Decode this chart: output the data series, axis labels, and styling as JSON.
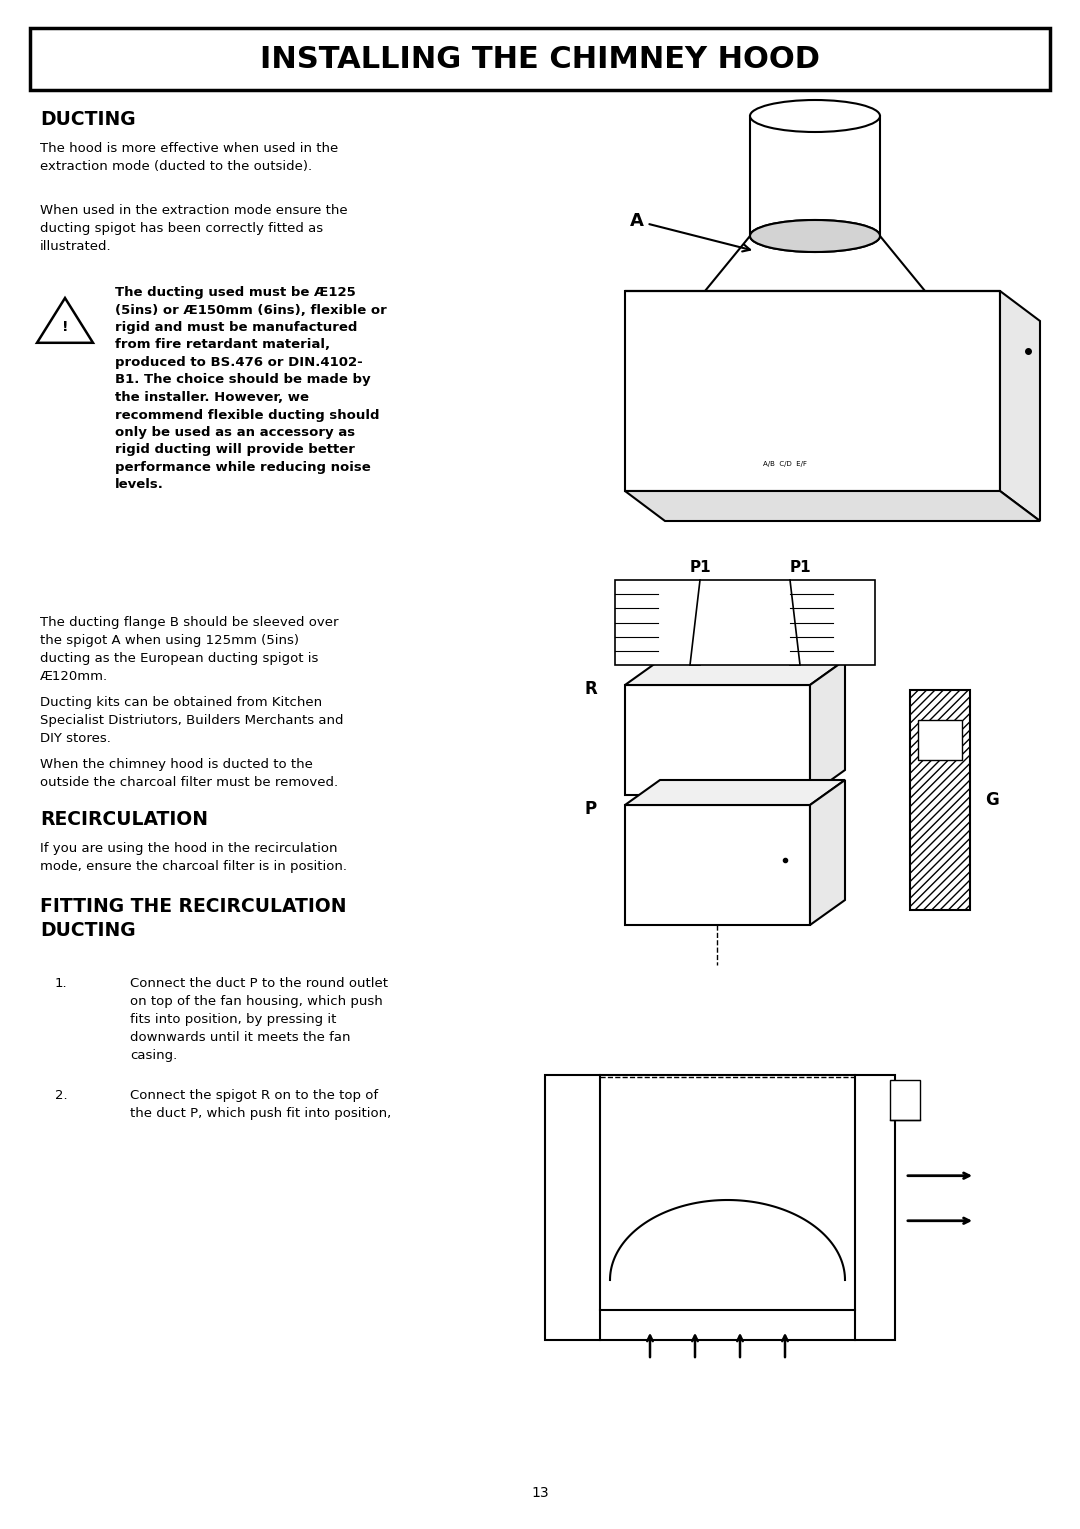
{
  "title": "INSTALLING THE CHIMNEY HOOD",
  "background_color": "#ffffff",
  "text_color": "#000000",
  "page_number": "13",
  "sections": {
    "ducting_heading": "DUCTING",
    "ducting_p1": "The hood is more effective when used in the\nextraction mode (ducted to the outside).",
    "ducting_p2": "When used in the extraction mode ensure the\nducting spigot has been correctly fitted as\nillustrated.",
    "warning_text": "The ducting used must be Æ125\n(5ins) or Æ150mm (6ins), flexible or\nrigid and must be manufactured\nfrom fire retardant material,\nproduced to BS.476 or DIN.4102-\nB1. The choice should be made by\nthe installer. However, we\nrecommend flexible ducting should\nonly be used as an accessory as\nrigid ducting will provide better\nperformance while reducing noise\nlevels.",
    "ducting_p3": "The ducting flange B should be sleeved over\nthe spigot A when using 125mm (5ins)\nducting as the European ducting spigot is\nÆ120mm.",
    "ducting_p4": "Ducting kits can be obtained from Kitchen\nSpecialist Distriutors, Builders Merchants and\nDIY stores.",
    "ducting_p5": "When the chimney hood is ducted to the\noutside the charcoal filter must be removed.",
    "recirculation_heading": "RECIRCULATION",
    "recirculation_p1": "If you are using the hood in the recirculation\nmode, ensure the charcoal filter is in position.",
    "fitting_heading": "FITTING THE RECIRCULATION\nDUCTING",
    "fitting_item1": "Connect the duct P to the round outlet\non top of the fan housing, which push\nfits into position, by pressing it\ndownwards until it meets the fan\ncasing.",
    "fitting_item2": "Connect the spigot R on to the top of\nthe duct P, which push fit into position,"
  }
}
